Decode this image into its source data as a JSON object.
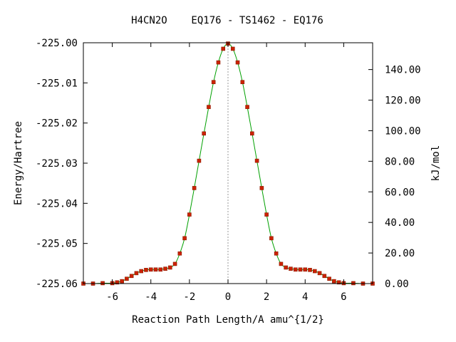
{
  "chart_data": {
    "type": "line",
    "title": "H4CN2O    EQ176 - TS1462 - EQ176",
    "xlabel": "Reaction Path Length/A amu^{1/2}",
    "ylabel": "Energy/Hartree",
    "y2label": "kJ/mol",
    "xlim": [
      -7.5,
      7.5
    ],
    "ylim": [
      -225.06,
      -225.0
    ],
    "y2lim": [
      0,
      157.53
    ],
    "x_ticks": [
      -6,
      -4,
      -2,
      0,
      2,
      4,
      6
    ],
    "x_tick_labels": [
      "-6",
      "-4",
      "-2",
      "0",
      "2",
      "4",
      "6"
    ],
    "y_ticks": [
      -225.0,
      -225.01,
      -225.02,
      -225.03,
      -225.04,
      -225.05,
      -225.06
    ],
    "y_tick_labels": [
      "-225.00",
      "-225.01",
      "-225.02",
      "-225.03",
      "-225.04",
      "-225.05",
      "-225.06"
    ],
    "y2_ticks": [
      0,
      20,
      40,
      60,
      80,
      100,
      120,
      140
    ],
    "y2_tick_labels": [
      "0.00",
      "20.00",
      "40.00",
      "60.00",
      "80.00",
      "100.00",
      "120.00",
      "140.00"
    ],
    "grid": false,
    "colors": {
      "line": "#00a000",
      "marker": "#cc2200",
      "center_line": "#999999"
    },
    "series": [
      {
        "x": [
          -7.5,
          -7.0,
          -6.5,
          -6.0,
          -5.75,
          -5.5,
          -5.25,
          -5.0,
          -4.75,
          -4.5,
          -4.25,
          -4.0,
          -3.75,
          -3.5,
          -3.25,
          -3.0,
          -2.75,
          -2.5,
          -2.25,
          -2.0,
          -1.75,
          -1.5,
          -1.25,
          -1.0,
          -0.75,
          -0.5,
          -0.25,
          0.0,
          0.25,
          0.5,
          0.75,
          1.0,
          1.25,
          1.5,
          1.75,
          2.0,
          2.25,
          2.5,
          2.75,
          3.0,
          3.25,
          3.5,
          3.75,
          4.0,
          4.25,
          4.5,
          4.75,
          5.0,
          5.25,
          5.5,
          5.75,
          6.0,
          6.5,
          7.0,
          7.5
        ],
        "y": [
          -225.06,
          -225.06,
          -225.0599,
          -225.0599,
          -225.0597,
          -225.0594,
          -225.0588,
          -225.0581,
          -225.0574,
          -225.0569,
          -225.0566,
          -225.0565,
          -225.0565,
          -225.0565,
          -225.0563,
          -225.056,
          -225.0551,
          -225.0525,
          -225.0487,
          -225.0428,
          -225.0362,
          -225.0294,
          -225.0226,
          -225.016,
          -225.0098,
          -225.0049,
          -225.0015,
          -225.0002,
          -225.0015,
          -225.0049,
          -225.0098,
          -225.016,
          -225.0226,
          -225.0294,
          -225.0362,
          -225.0428,
          -225.0487,
          -225.0525,
          -225.0551,
          -225.056,
          -225.0563,
          -225.0565,
          -225.0565,
          -225.0565,
          -225.0566,
          -225.0569,
          -225.0574,
          -225.0581,
          -225.0588,
          -225.0594,
          -225.0597,
          -225.0599,
          -225.0599,
          -225.06,
          -225.06
        ]
      }
    ]
  }
}
